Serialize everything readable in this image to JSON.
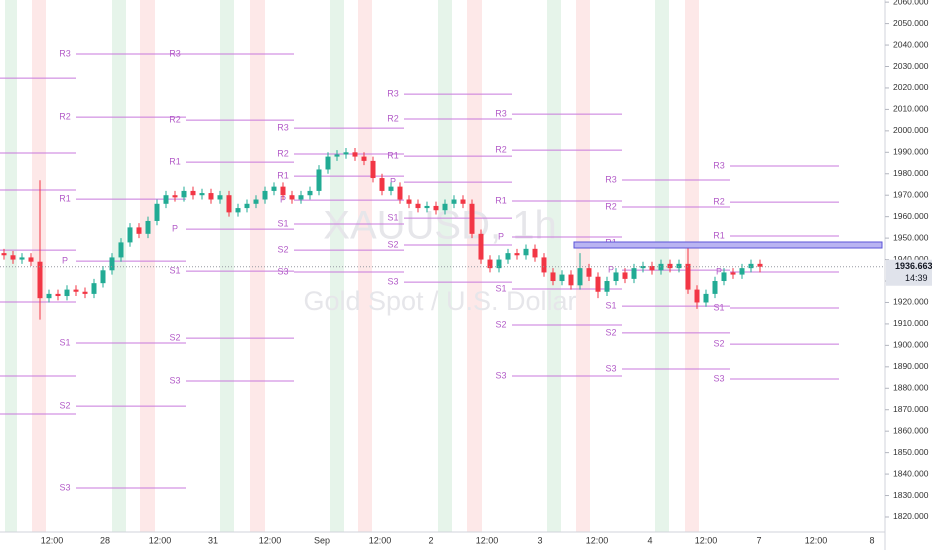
{
  "chart_data": {
    "type": "candlestick",
    "symbol": "XAUUSD, 1h",
    "description": "Gold Spot / U.S. Dollar",
    "ylim": [
      1813,
      2061
    ],
    "yticks": [
      {
        "value": 1820,
        "label": "1820.000"
      },
      {
        "value": 1830,
        "label": "1830.000"
      },
      {
        "value": 1840,
        "label": "1840.000"
      },
      {
        "value": 1850,
        "label": "1850.000"
      },
      {
        "value": 1860,
        "label": "1860.000"
      },
      {
        "value": 1870,
        "label": "1870.000"
      },
      {
        "value": 1880,
        "label": "1880.000"
      },
      {
        "value": 1890,
        "label": "1890.000"
      },
      {
        "value": 1900,
        "label": "1900.000"
      },
      {
        "value": 1910,
        "label": "1910.000"
      },
      {
        "value": 1920,
        "label": "1920.000"
      },
      {
        "value": 1930,
        "label": "1930.000"
      },
      {
        "value": 1940,
        "label": "1940.000"
      },
      {
        "value": 1950,
        "label": "1950.000"
      },
      {
        "value": 1960,
        "label": "1960.000"
      },
      {
        "value": 1970,
        "label": "1970.000"
      },
      {
        "value": 1980,
        "label": "1980.000"
      },
      {
        "value": 1990,
        "label": "1990.000"
      },
      {
        "value": 2000,
        "label": "2000.000"
      },
      {
        "value": 2010,
        "label": "2010.000"
      },
      {
        "value": 2020,
        "label": "2020.000"
      },
      {
        "value": 2030,
        "label": "2030.000"
      },
      {
        "value": 2040,
        "label": "2040.000"
      },
      {
        "value": 2050,
        "label": "2050.000"
      },
      {
        "value": 2060,
        "label": "2060.000"
      }
    ],
    "xtick_labels": [
      "12:00",
      "28",
      "12:00",
      "31",
      "12:00",
      "Sep",
      "12:00",
      "2",
      "12:00",
      "3",
      "12:00",
      "4",
      "12:00",
      "7",
      "12:00",
      "8"
    ],
    "up_color": "#22ab94",
    "down_color": "#f23645",
    "open": [
      1943,
      1942,
      1940,
      1941,
      1939,
      1922,
      1924,
      1923,
      1926,
      1925,
      1924,
      1929,
      1935,
      1941,
      1948,
      1955,
      1952,
      1958,
      1966,
      1970,
      1969,
      1972,
      1970,
      1971,
      1968,
      1970,
      1962,
      1964,
      1966,
      1968,
      1972,
      1974,
      1970,
      1968,
      1970,
      1972,
      1982,
      1988,
      1989,
      1990,
      1988,
      1986,
      1978,
      1972,
      1974,
      1968,
      1966,
      1964,
      1965,
      1963,
      1966,
      1968,
      1966,
      1952,
      1940,
      1936,
      1940,
      1943,
      1942,
      1945,
      1941,
      1934,
      1930,
      1933,
      1928,
      1936,
      1932,
      1925,
      1930,
      1934,
      1931,
      1936,
      1937,
      1935,
      1938,
      1936,
      1938,
      1926,
      1920,
      1924,
      1930,
      1934,
      1933,
      1936,
      1938
    ],
    "high": [
      1945,
      1944,
      1943,
      1943,
      1977,
      1926,
      1926,
      1928,
      1928,
      1927,
      1931,
      1937,
      1943,
      1950,
      1957,
      1957,
      1960,
      1968,
      1972,
      1972,
      1974,
      1974,
      1973,
      1973,
      1972,
      1972,
      1966,
      1968,
      1970,
      1974,
      1976,
      1976,
      1972,
      1972,
      1974,
      1984,
      1990,
      1991,
      1992,
      1992,
      1990,
      1988,
      1980,
      1976,
      1976,
      1970,
      1968,
      1967,
      1967,
      1968,
      1970,
      1970,
      1968,
      1954,
      1942,
      1942,
      1945,
      1945,
      1947,
      1947,
      1943,
      1936,
      1935,
      1935,
      1943,
      1938,
      1934,
      1932,
      1936,
      1936,
      1938,
      1939,
      1939,
      1940,
      1940,
      1940,
      1948,
      1928,
      1926,
      1932,
      1936,
      1936,
      1938,
      1940,
      1940
    ],
    "low": [
      1940,
      1938,
      1938,
      1937,
      1912,
      1920,
      1921,
      1921,
      1923,
      1922,
      1922,
      1927,
      1933,
      1939,
      1946,
      1950,
      1950,
      1956,
      1964,
      1967,
      1967,
      1968,
      1968,
      1966,
      1966,
      1960,
      1960,
      1962,
      1964,
      1966,
      1970,
      1968,
      1966,
      1966,
      1968,
      1970,
      1980,
      1986,
      1987,
      1986,
      1984,
      1976,
      1970,
      1970,
      1966,
      1964,
      1962,
      1962,
      1961,
      1961,
      1964,
      1964,
      1950,
      1938,
      1934,
      1934,
      1938,
      1940,
      1940,
      1939,
      1932,
      1928,
      1928,
      1926,
      1926,
      1930,
      1922,
      1923,
      1928,
      1929,
      1929,
      1934,
      1933,
      1933,
      1934,
      1934,
      1924,
      1917,
      1918,
      1922,
      1928,
      1931,
      1931,
      1934,
      1934
    ],
    "close": [
      1942,
      1940,
      1941,
      1939,
      1922,
      1924,
      1923,
      1926,
      1925,
      1924,
      1929,
      1935,
      1941,
      1948,
      1955,
      1952,
      1958,
      1966,
      1970,
      1969,
      1972,
      1970,
      1971,
      1968,
      1970,
      1962,
      1964,
      1966,
      1968,
      1972,
      1974,
      1970,
      1968,
      1970,
      1972,
      1982,
      1988,
      1989,
      1990,
      1988,
      1986,
      1978,
      1972,
      1974,
      1968,
      1966,
      1964,
      1965,
      1963,
      1966,
      1968,
      1966,
      1952,
      1940,
      1936,
      1940,
      1943,
      1942,
      1945,
      1941,
      1934,
      1930,
      1933,
      1928,
      1936,
      1932,
      1925,
      1930,
      1934,
      1931,
      1936,
      1937,
      1935,
      1938,
      1936,
      1938,
      1926,
      1920,
      1924,
      1930,
      1934,
      1933,
      1936,
      1938,
      1936.663
    ],
    "last_price": 1936.663,
    "countdown": "14:39",
    "pivot_labels": [
      "R3",
      "R2",
      "R1",
      "P",
      "S1",
      "S2",
      "S3"
    ],
    "pivot_color": "#c879dc",
    "pivots": [
      [
        2024.6,
        1989.7,
        1972.4,
        1944.4,
        1920.2,
        1885.7,
        1868.0
      ],
      [
        2035.8,
        2006.4,
        1968.2,
        1939.3,
        1901.1,
        1871.7,
        1833.5
      ],
      [
        2035.8,
        2005.0,
        1985.4,
        1954.2,
        1934.6,
        1903.4,
        1883.4
      ],
      [
        2001.3,
        1989.2,
        1978.9,
        1967.7,
        1956.6,
        1944.4,
        1934.2
      ],
      [
        2017.1,
        2005.5,
        1988.2,
        1976.1,
        1959.3,
        1946.8,
        1929.5
      ],
      [
        2007.8,
        1991.0,
        1967.3,
        1950.5,
        1926.3,
        1909.5,
        1885.7
      ],
      [
        1977.1,
        1964.5,
        1947.7,
        1935.1,
        1918.3,
        1905.8,
        1889.0
      ],
      [
        1983.6,
        1966.8,
        1951.0,
        1934.2,
        1917.4,
        1900.6,
        1884.3
      ]
    ]
  }
}
